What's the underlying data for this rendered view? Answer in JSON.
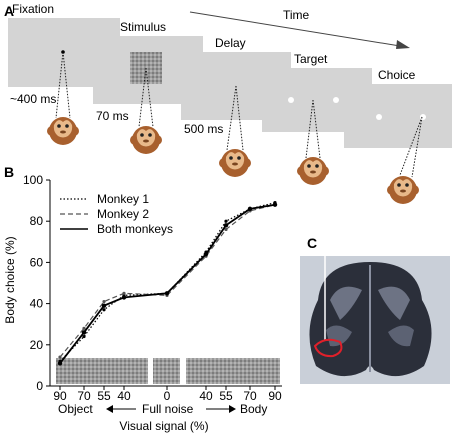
{
  "panels": {
    "a": "A",
    "b": "B",
    "c": "C"
  },
  "task": {
    "time_label": "Time",
    "stages": [
      {
        "label": "Fixation",
        "duration": "~400 ms"
      },
      {
        "label": "Stimulus",
        "duration": "70 ms"
      },
      {
        "label": "Delay",
        "duration": "500 ms"
      },
      {
        "label": "Target",
        "duration": ""
      },
      {
        "label": "Choice",
        "duration": ""
      }
    ]
  },
  "chart_data": {
    "type": "line",
    "ylabel": "Body choice (%)",
    "xlabel": "Visual signal (%)",
    "ylim": [
      0,
      100
    ],
    "y_ticks": [
      "0",
      "20",
      "40",
      "60",
      "80",
      "100"
    ],
    "categories": [
      "90",
      "70",
      "55",
      "40",
      "0",
      "40",
      "55",
      "70",
      "90"
    ],
    "x_region_labels": {
      "left": "Object",
      "middle": "Full noise",
      "right": "Body"
    },
    "legend_position": "top-left",
    "series": [
      {
        "name": "Monkey 1",
        "style": "dotted",
        "values": [
          12,
          24,
          37,
          44,
          45,
          65,
          80,
          86,
          89
        ]
      },
      {
        "name": "Monkey 2",
        "style": "dashed",
        "values": [
          14,
          28,
          41,
          45,
          44,
          63,
          76,
          85,
          88
        ]
      },
      {
        "name": "Both monkeys",
        "style": "solid",
        "values": [
          11,
          26,
          39,
          43,
          45,
          64,
          78,
          86,
          88
        ]
      }
    ]
  },
  "colors": {
    "screen": "#d4d4d4",
    "monkey_face": "#a8602e",
    "roi": "#e0202a"
  }
}
